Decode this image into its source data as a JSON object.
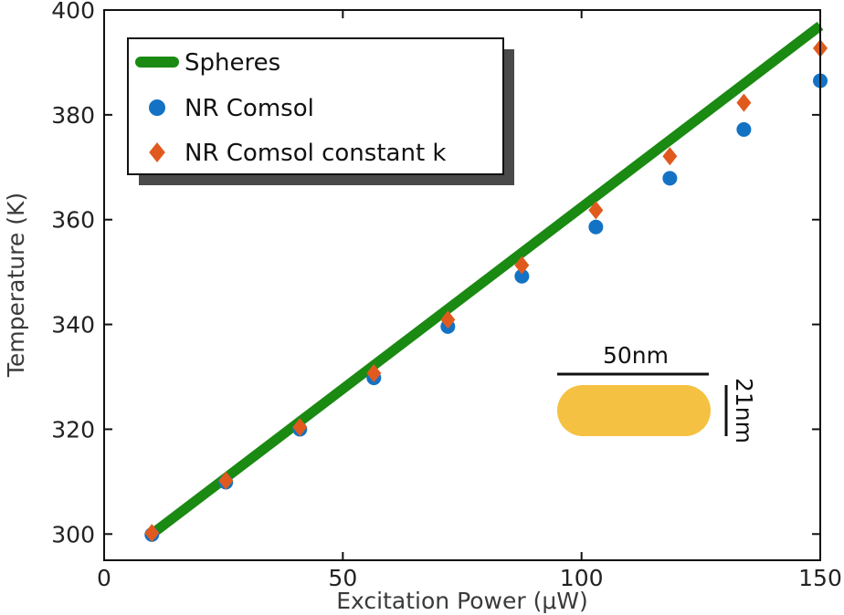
{
  "chart_data": {
    "type": "scatter",
    "xlabel": "Excitation Power (μW)",
    "ylabel": "Temperature (K)",
    "xlim": [
      0,
      150
    ],
    "ylim": [
      295,
      400
    ],
    "xticks": [
      0,
      50,
      100,
      150
    ],
    "yticks": [
      300,
      320,
      340,
      360,
      380,
      400
    ],
    "grid": false,
    "legend_position": "top-left",
    "series": [
      {
        "name": "Spheres",
        "kind": "line",
        "color": "#1a8a12",
        "x": [
          10,
          150
        ],
        "y": [
          300,
          397
        ]
      },
      {
        "name": "NR Comsol",
        "kind": "scatter",
        "marker": "circle",
        "color": "#1372c4",
        "x": [
          10,
          25.5,
          41,
          56.5,
          72,
          87.5,
          103,
          118.5,
          134,
          150
        ],
        "y": [
          299.9,
          309.9,
          320.0,
          329.8,
          339.6,
          349.2,
          358.6,
          367.9,
          377.2,
          386.5
        ]
      },
      {
        "name": "NR Comsol constant k",
        "kind": "scatter",
        "marker": "diamond",
        "color": "#e05a1e",
        "x": [
          10,
          25.5,
          41,
          56.5,
          72,
          87.5,
          103,
          118.5,
          134,
          150
        ],
        "y": [
          300.2,
          310.2,
          320.4,
          330.7,
          340.9,
          351.3,
          361.8,
          372.1,
          382.3,
          392.7
        ]
      }
    ],
    "inset": {
      "length_label": "50nm",
      "width_label": "21nm",
      "rod_color": "#f5c142"
    }
  }
}
